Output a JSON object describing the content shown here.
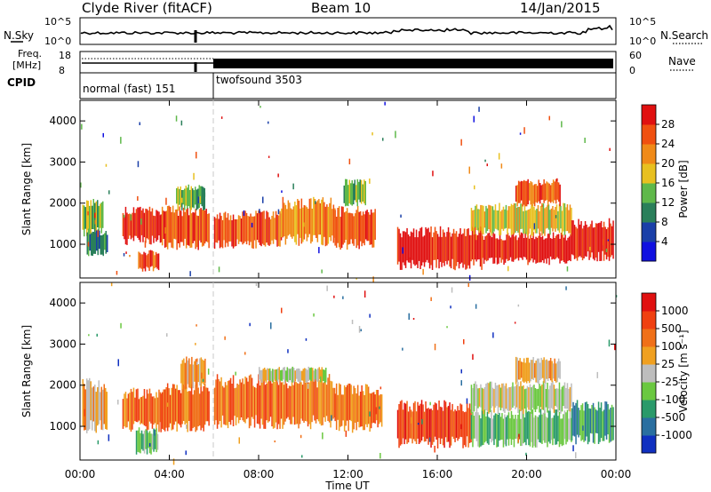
{
  "header": {
    "station": "Clyde River (fitACF)",
    "beam": "Beam 10",
    "date": "14/Jan/2015"
  },
  "status_panels": {
    "nsky_label": "N.Sky",
    "nsky_ticks": [
      "10^5",
      "10^0"
    ],
    "nsearch_label": "N.Search",
    "nsearch_ticks": [
      "10^5",
      "10^0"
    ],
    "freq_label_line1": "Freq.",
    "freq_label_line2": "[MHz]",
    "freq_ticks": [
      "18",
      "8"
    ],
    "nave_label": "Nave",
    "nave_ticks": [
      "60",
      "0"
    ],
    "cpid_label": "CPID",
    "cpid_segments": [
      {
        "name": "normal (fast) 151",
        "start_hour": 0
      },
      {
        "name": "twofsound 3503",
        "start_hour": 6
      }
    ]
  },
  "chart_data": [
    {
      "type": "heatmap",
      "title": "",
      "xlabel": "",
      "ylabel": "Slant Range [km]",
      "xlim": [
        0,
        24
      ],
      "ylim": [
        180,
        4500
      ],
      "y_ticks": [
        "1000",
        "2000",
        "3000",
        "4000"
      ],
      "colorbar": {
        "label": "Power [dB]",
        "ticks": [
          "4",
          "8",
          "12",
          "16",
          "20",
          "24",
          "28"
        ],
        "colors": [
          "#1010e0",
          "#1a3fa8",
          "#2a7f5a",
          "#5fb84a",
          "#e8c020",
          "#f08a18",
          "#f05010",
          "#e01010"
        ]
      },
      "echo_regions": [
        {
          "x": [
            0.1,
            1.0
          ],
          "y": [
            1300,
            2000
          ],
          "level": 3
        },
        {
          "x": [
            0.3,
            1.2
          ],
          "y": [
            800,
            1300
          ],
          "level": 2
        },
        {
          "x": [
            1.9,
            3.6
          ],
          "y": [
            1100,
            1800
          ],
          "level": 7
        },
        {
          "x": [
            2.6,
            3.5
          ],
          "y": [
            400,
            800
          ],
          "level": 6
        },
        {
          "x": [
            3.6,
            5.8
          ],
          "y": [
            1000,
            1800
          ],
          "level": 6
        },
        {
          "x": [
            4.3,
            5.6
          ],
          "y": [
            1900,
            2400
          ],
          "level": 3
        },
        {
          "x": [
            6.0,
            9.0
          ],
          "y": [
            1000,
            1700
          ],
          "level": 6
        },
        {
          "x": [
            9.0,
            11.4
          ],
          "y": [
            1100,
            2000
          ],
          "level": 5
        },
        {
          "x": [
            11.4,
            13.2
          ],
          "y": [
            1000,
            1800
          ],
          "level": 6
        },
        {
          "x": [
            11.8,
            12.8
          ],
          "y": [
            2000,
            2500
          ],
          "level": 3
        },
        {
          "x": [
            14.2,
            18.0
          ],
          "y": [
            500,
            1300
          ],
          "level": 7
        },
        {
          "x": [
            18.0,
            22.0
          ],
          "y": [
            600,
            1200
          ],
          "level": 7
        },
        {
          "x": [
            17.5,
            22.0
          ],
          "y": [
            1300,
            1900
          ],
          "level": 4
        },
        {
          "x": [
            19.5,
            21.5
          ],
          "y": [
            2000,
            2500
          ],
          "level": 6
        },
        {
          "x": [
            22.0,
            23.9
          ],
          "y": [
            700,
            1500
          ],
          "level": 7
        }
      ]
    },
    {
      "type": "heatmap",
      "title": "",
      "xlabel": "Time UT",
      "ylabel": "Slant Range [km]",
      "xlim": [
        0,
        24
      ],
      "ylim": [
        180,
        4500
      ],
      "x_ticks": [
        "00:00",
        "04:00",
        "08:00",
        "12:00",
        "16:00",
        "20:00",
        "00:00"
      ],
      "y_ticks": [
        "1000",
        "2000",
        "3000",
        "4000"
      ],
      "colorbar": {
        "label": "Velocity [m s⁻¹]",
        "ticks": [
          "1000",
          "500",
          "100",
          "25",
          "-25",
          "-100",
          "-500",
          "-1000"
        ],
        "colors": [
          "#1030c0",
          "#2a6fa0",
          "#2a9a6a",
          "#6ac840",
          "#bdbdbd",
          "#f0a020",
          "#f07018",
          "#f04010",
          "#e01010"
        ]
      },
      "echo_regions": [
        {
          "x": [
            0.1,
            1.2
          ],
          "y": [
            1000,
            2000
          ],
          "level": 5
        },
        {
          "x": [
            1.9,
            3.6
          ],
          "y": [
            1000,
            1800
          ],
          "level": 6
        },
        {
          "x": [
            2.5,
            3.5
          ],
          "y": [
            400,
            900
          ],
          "level": 3
        },
        {
          "x": [
            3.6,
            5.8
          ],
          "y": [
            1000,
            1900
          ],
          "level": 6
        },
        {
          "x": [
            4.5,
            5.6
          ],
          "y": [
            2000,
            2600
          ],
          "level": 5
        },
        {
          "x": [
            6.0,
            11.4
          ],
          "y": [
            1100,
            2100
          ],
          "level": 6
        },
        {
          "x": [
            8.0,
            11.0
          ],
          "y": [
            2100,
            2400
          ],
          "level": 4
        },
        {
          "x": [
            11.4,
            13.5
          ],
          "y": [
            1000,
            1900
          ],
          "level": 6
        },
        {
          "x": [
            14.2,
            17.5
          ],
          "y": [
            600,
            1500
          ],
          "level": 7
        },
        {
          "x": [
            17.5,
            22.0
          ],
          "y": [
            600,
            1300
          ],
          "level": 3
        },
        {
          "x": [
            17.5,
            22.0
          ],
          "y": [
            1400,
            2000
          ],
          "level": 4
        },
        {
          "x": [
            19.5,
            21.5
          ],
          "y": [
            2100,
            2600
          ],
          "level": 5
        },
        {
          "x": [
            22.0,
            23.9
          ],
          "y": [
            700,
            1500
          ],
          "level": 2
        }
      ]
    }
  ]
}
